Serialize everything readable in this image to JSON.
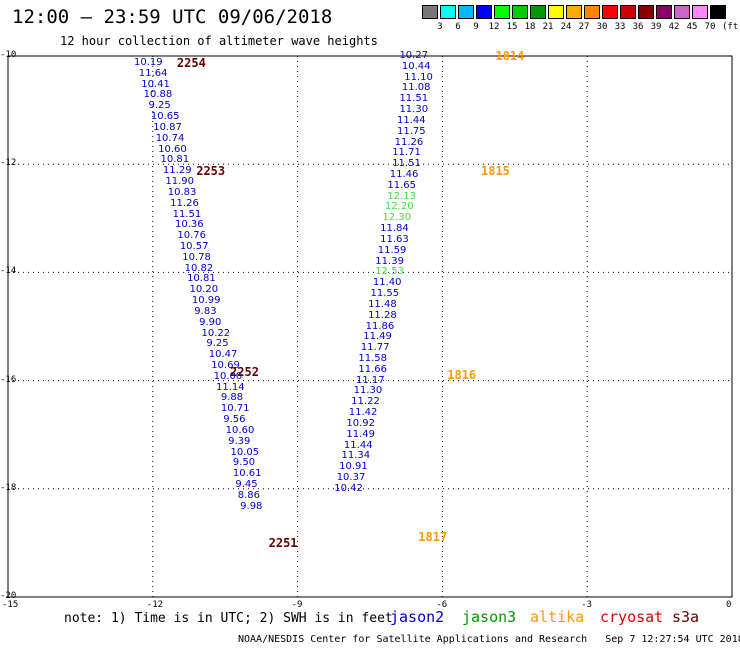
{
  "header": {
    "title": "12:00 – 23:59 UTC 09/06/2018",
    "subtitle": "12 hour collection of altimeter wave heights"
  },
  "legend": {
    "unit": "(ft)",
    "colors": [
      "#777777",
      "#00ffff",
      "#00bbff",
      "#0000ff",
      "#00ff00",
      "#00cc00",
      "#009900",
      "#ffff00",
      "#ffaa00",
      "#ff8800",
      "#ff0000",
      "#cc0000",
      "#880000",
      "#880066",
      "#cc66cc",
      "#ff88ff",
      "#000000"
    ],
    "labels": [
      "3",
      "6",
      "9",
      "12",
      "15",
      "18",
      "21",
      "24",
      "27",
      "30",
      "33",
      "36",
      "39",
      "42",
      "45",
      "70"
    ]
  },
  "axes": {
    "x_ticks": [
      "-15",
      "-12",
      "-9",
      "-6",
      "-3",
      "0"
    ],
    "y_ticks": [
      "-10",
      "-12",
      "-14",
      "-16",
      "-18",
      "-20"
    ]
  },
  "footer": {
    "note": "note: 1) Time is in UTC; 2) SWH is in feet",
    "credit": "NOAA/NESDIS Center for Satellite Applications and Research",
    "timestamp": "Sep  7 12:27:54 UTC 2018"
  },
  "satellites": [
    {
      "name": "jason2",
      "color": "#0000cc"
    },
    {
      "name": "jason3",
      "color": "#009900"
    },
    {
      "name": "altika",
      "color": "#ff9900"
    },
    {
      "name": "cryosat",
      "color": "#dd0000"
    },
    {
      "name": "s3a",
      "color": "#660000"
    }
  ],
  "tracks": [
    {
      "pass": "2254",
      "pass_color": "#660000",
      "pass_x": -11.3,
      "pass_y": -10.13,
      "points": [
        {
          "lon": -12.2,
          "lat": -10.13,
          "v": "10.19"
        },
        {
          "lon": -12.1,
          "lat": -10.33,
          "v": "11.64"
        },
        {
          "lon": -12.05,
          "lat": -10.53,
          "v": "10.41"
        },
        {
          "lon": -12.0,
          "lat": -10.73,
          "v": "10.88"
        },
        {
          "lon": -11.95,
          "lat": -10.93,
          "v": "9.25"
        },
        {
          "lon": -11.9,
          "lat": -11.13,
          "v": "10.65"
        },
        {
          "lon": -11.85,
          "lat": -11.33,
          "v": "10.87"
        },
        {
          "lon": -11.8,
          "lat": -11.53,
          "v": "10.74"
        },
        {
          "lon": -11.75,
          "lat": -11.73,
          "v": "10.60"
        },
        {
          "lon": -11.7,
          "lat": -11.93,
          "v": "10.81"
        },
        {
          "lon": -11.65,
          "lat": -12.13,
          "v": "11.29"
        },
        {
          "lon": -11.6,
          "lat": -12.33,
          "v": "11.90"
        },
        {
          "lon": -11.55,
          "lat": -12.53,
          "v": "10.83"
        },
        {
          "lon": -11.5,
          "lat": -12.73,
          "v": "11.26"
        },
        {
          "lon": -11.45,
          "lat": -12.93,
          "v": "11.51"
        },
        {
          "lon": -11.4,
          "lat": -13.13,
          "v": "10.36"
        },
        {
          "lon": -11.35,
          "lat": -13.33,
          "v": "10.76"
        },
        {
          "lon": -11.3,
          "lat": -13.53,
          "v": "10.57"
        },
        {
          "lon": -11.25,
          "lat": -13.73,
          "v": "10.78"
        },
        {
          "lon": -11.2,
          "lat": -13.93,
          "v": "10.82"
        },
        {
          "lon": -11.15,
          "lat": -14.13,
          "v": "10.81"
        },
        {
          "lon": -11.1,
          "lat": -14.33,
          "v": "10.20"
        },
        {
          "lon": -11.05,
          "lat": -14.53,
          "v": "10.99"
        },
        {
          "lon": -11.0,
          "lat": -14.73,
          "v": "9.83"
        },
        {
          "lon": -10.95,
          "lat": -14.93,
          "v": "9.90"
        },
        {
          "lon": -10.9,
          "lat": -15.13,
          "v": "10.22"
        },
        {
          "lon": -10.85,
          "lat": -15.33,
          "v": "9.25"
        },
        {
          "lon": -10.8,
          "lat": -15.53,
          "v": "10.47"
        },
        {
          "lon": -10.75,
          "lat": -15.73,
          "v": "10.69"
        },
        {
          "lon": -10.7,
          "lat": -15.93,
          "v": "10.00"
        },
        {
          "lon": -10.65,
          "lat": -16.13,
          "v": "11.14"
        },
        {
          "lon": -10.6,
          "lat": -16.33,
          "v": "9.88"
        },
        {
          "lon": -10.55,
          "lat": -16.53,
          "v": "10.71"
        },
        {
          "lon": -10.5,
          "lat": -16.73,
          "v": "9.56"
        },
        {
          "lon": -10.45,
          "lat": -16.93,
          "v": "10.60"
        },
        {
          "lon": -10.4,
          "lat": -17.13,
          "v": "9.39"
        },
        {
          "lon": -10.35,
          "lat": -17.33,
          "v": "10.05"
        },
        {
          "lon": -10.3,
          "lat": -17.53,
          "v": "9.50"
        },
        {
          "lon": -10.3,
          "lat": -17.73,
          "v": "10.61"
        },
        {
          "lon": -10.25,
          "lat": -17.93,
          "v": "9.45"
        },
        {
          "lon": -10.2,
          "lat": -18.13,
          "v": "8.86",
          "c": "#00bbbb"
        },
        {
          "lon": -10.15,
          "lat": -18.33,
          "v": "9.98"
        }
      ]
    }
  ],
  "pass_labels": [
    {
      "id": "2254",
      "color": "#660000",
      "lon": -11.5,
      "lat": -10.13
    },
    {
      "id": "2253",
      "color": "#660000",
      "lon": -11.1,
      "lat": -12.13
    },
    {
      "id": "2252",
      "color": "#660000",
      "lon": -10.4,
      "lat": -15.85
    },
    {
      "id": "2251",
      "color": "#660000",
      "lon": -9.6,
      "lat": -19.0
    },
    {
      "id": "1814",
      "color": "#ff9900",
      "lon": -4.9,
      "lat": -10.0
    },
    {
      "id": "1815",
      "color": "#ff9900",
      "lon": -5.2,
      "lat": -12.13
    },
    {
      "id": "1816",
      "color": "#ff9900",
      "lon": -5.9,
      "lat": -15.9
    },
    {
      "id": "1817",
      "color": "#ff9900",
      "lon": -6.5,
      "lat": -18.9
    }
  ],
  "track2254": [
    [
      "10.19",
      -12.1,
      -10.13
    ],
    [
      "11.64",
      -12.0,
      -10.33
    ],
    [
      "10.41",
      -11.95,
      -10.53
    ],
    [
      "10.88",
      -11.9,
      -10.73
    ],
    [
      "9.25",
      -11.8,
      -10.93
    ],
    [
      "10.65",
      -11.75,
      -11.13
    ],
    [
      "10.87",
      -11.7,
      -11.33
    ],
    [
      "10.74",
      -11.65,
      -11.53
    ],
    [
      "10.60",
      -11.6,
      -11.73
    ],
    [
      "10.81",
      -11.55,
      -11.93
    ],
    [
      "11.29",
      -11.5,
      -12.13
    ],
    [
      "11.90",
      -11.45,
      -12.33
    ],
    [
      "10.83",
      -11.4,
      -12.53
    ],
    [
      "11.26",
      -11.35,
      -12.73
    ],
    [
      "11.51",
      -11.3,
      -12.93
    ],
    [
      "10.36",
      -11.25,
      -13.13
    ],
    [
      "10.76",
      -11.2,
      -13.33
    ],
    [
      "10.57",
      -11.15,
      -13.53
    ],
    [
      "10.78",
      -11.1,
      -13.73
    ],
    [
      "10.82",
      -11.05,
      -13.93
    ],
    [
      "10.81",
      -11.0,
      -14.13
    ],
    [
      "10.20",
      -10.95,
      -14.33
    ],
    [
      "10.99",
      -10.9,
      -14.53
    ],
    [
      "9.83",
      -10.85,
      -14.73
    ],
    [
      "9.90",
      -10.75,
      -14.93
    ],
    [
      "10.22",
      -10.7,
      -15.13
    ],
    [
      "9.25",
      -10.6,
      -15.33
    ],
    [
      "10.47",
      -10.55,
      -15.53
    ],
    [
      "10.69",
      -10.5,
      -15.73
    ],
    [
      "10.00",
      -10.45,
      -15.93
    ],
    [
      "11.14",
      -10.4,
      -16.13
    ],
    [
      "9.88",
      -10.3,
      -16.33
    ],
    [
      "10.71",
      -10.3,
      -16.53
    ],
    [
      "9.56",
      -10.25,
      -16.73
    ],
    [
      "10.60",
      -10.2,
      -16.93
    ],
    [
      "9.39",
      -10.15,
      -17.13
    ],
    [
      "10.05",
      -10.1,
      -17.33
    ],
    [
      "9.50",
      -10.05,
      -17.53
    ],
    [
      "10.61",
      -10.05,
      -17.73
    ],
    [
      "9.45",
      -10.0,
      -17.93
    ],
    [
      "8.86",
      -9.95,
      -18.13
    ],
    [
      "9.98",
      -9.9,
      -18.33
    ]
  ],
  "track1814": [
    [
      "10.27",
      -6.6,
      -10.0
    ],
    [
      "10.44",
      -6.55,
      -10.2
    ],
    [
      "11.10",
      -6.5,
      -10.4
    ],
    [
      "11.08",
      -6.55,
      -10.6
    ],
    [
      "11.51",
      -6.6,
      -10.8
    ],
    [
      "11.30",
      -6.6,
      -11.0
    ],
    [
      "11.44",
      -6.65,
      -11.2
    ],
    [
      "11.75",
      -6.65,
      -11.4
    ],
    [
      "11.26",
      -6.7,
      -11.6
    ],
    [
      "11.71",
      -6.75,
      -11.8
    ],
    [
      "11.51",
      -6.75,
      -12.0
    ],
    [
      "11.46",
      -6.8,
      -12.2
    ],
    [
      "11.65",
      -6.85,
      -12.4
    ],
    [
      "12.13",
      -6.85,
      -12.6,
      "#44dd44"
    ],
    [
      "12.20",
      -6.9,
      -12.8,
      "#44dd44"
    ],
    [
      "12.30",
      -6.95,
      -13.0,
      "#44dd44"
    ],
    [
      "11.84",
      -7.0,
      -13.2
    ],
    [
      "11.63",
      -7.0,
      -13.4
    ],
    [
      "11.59",
      -7.05,
      -13.6
    ],
    [
      "11.39",
      -7.1,
      -13.8
    ],
    [
      "12.53",
      -7.1,
      -14.0,
      "#44dd44"
    ],
    [
      "11.40",
      -7.15,
      -14.2
    ],
    [
      "11.55",
      -7.2,
      -14.4
    ],
    [
      "11.48",
      -7.25,
      -14.6
    ],
    [
      "11.28",
      -7.25,
      -14.8
    ],
    [
      "11.86",
      -7.3,
      -15.0
    ],
    [
      "11.49",
      -7.35,
      -15.2
    ],
    [
      "11.77",
      -7.4,
      -15.4
    ],
    [
      "11.58",
      -7.45,
      -15.6
    ],
    [
      "11.66",
      -7.45,
      -15.8
    ],
    [
      "11.17",
      -7.5,
      -16.0
    ],
    [
      "11.30",
      -7.55,
      -16.2
    ],
    [
      "11.22",
      -7.6,
      -16.4
    ],
    [
      "11.42",
      -7.65,
      -16.6
    ],
    [
      "10.92",
      -7.7,
      -16.8
    ],
    [
      "11.49",
      -7.7,
      -17.0
    ],
    [
      "11.44",
      -7.75,
      -17.2
    ],
    [
      "11.34",
      -7.8,
      -17.4
    ],
    [
      "10.91",
      -7.85,
      -17.6
    ],
    [
      "10.37",
      -7.9,
      -17.8
    ],
    [
      "10.42",
      -7.95,
      -18.0
    ]
  ]
}
